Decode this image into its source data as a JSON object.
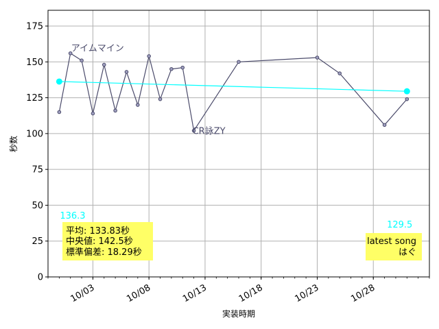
{
  "chart_data": {
    "type": "line",
    "xlabel": "実装時期",
    "ylabel": "秒数",
    "x_tick_labels": [
      "10/03",
      "10/08",
      "10/13",
      "10/18",
      "10/23",
      "10/28"
    ],
    "x_tick_values": [
      "2023-10-03",
      "2023-10-08",
      "2023-10-13",
      "2023-10-18",
      "2023-10-23",
      "2023-10-28"
    ],
    "xlim": [
      "2023-09-29",
      "2023-11-02"
    ],
    "ylim": [
      0,
      186
    ],
    "y_ticks": [
      0,
      25,
      50,
      75,
      100,
      125,
      150,
      175
    ],
    "grid": true,
    "series": [
      {
        "color": "#4a4a6a",
        "x": [
          "2023-09-30",
          "2023-10-01",
          "2023-10-02",
          "2023-10-03",
          "2023-10-04",
          "2023-10-05",
          "2023-10-06",
          "2023-10-07",
          "2023-10-08",
          "2023-10-09",
          "2023-10-10",
          "2023-10-11",
          "2023-10-12",
          "2023-10-16",
          "2023-10-23",
          "2023-10-25",
          "2023-10-29",
          "2023-10-31"
        ],
        "y": [
          115,
          156,
          151,
          114,
          148,
          116,
          143,
          120,
          154,
          124,
          145,
          146,
          102,
          150,
          153,
          142,
          106,
          124
        ]
      },
      {
        "color": "#00ffff",
        "x": [
          "2023-09-30",
          "2023-10-31"
        ],
        "y": [
          136.3,
          129.5
        ]
      }
    ],
    "annotations": {
      "point_labels": [
        {
          "x": "2023-10-01",
          "y": 156,
          "text": "アイムマイン"
        },
        {
          "x": "2023-10-12",
          "y": 102,
          "text": "CR詠ZY"
        }
      ],
      "trend_start_label": "136.3",
      "trend_end_label": "129.5",
      "stats_lines": [
        "平均: 133.83秒",
        "中央値: 142.5秒",
        "標準偏差:  18.29秒"
      ],
      "latest_lines": [
        "latest song",
        "はぐ"
      ]
    },
    "colors": {
      "line": "#4a4a6a",
      "trend": "#00ffff",
      "box": "#ffff66",
      "grid": "#b0b0b0"
    }
  }
}
